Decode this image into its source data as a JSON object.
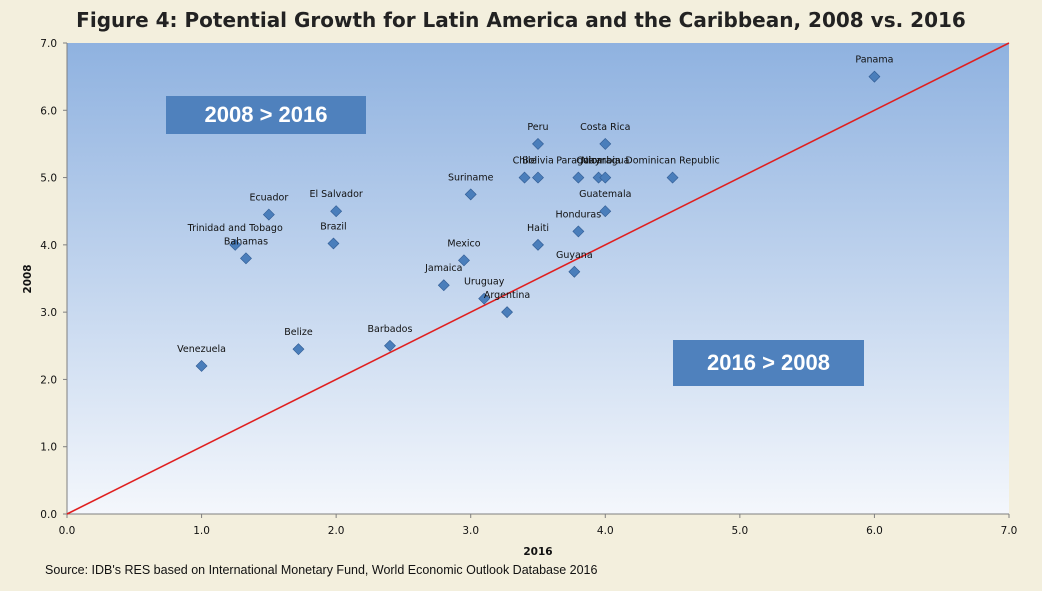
{
  "chart_data": {
    "type": "scatter",
    "title": "Figure 4: Potential Growth for Latin America and the Caribbean, 2008 vs. 2016",
    "xlabel": "2016",
    "ylabel": "2008",
    "xlim": [
      0,
      7
    ],
    "ylim": [
      0,
      7
    ],
    "xticks": [
      "0.0",
      "1.0",
      "2.0",
      "3.0",
      "4.0",
      "5.0",
      "6.0",
      "7.0"
    ],
    "yticks": [
      "0.0",
      "1.0",
      "2.0",
      "3.0",
      "4.0",
      "5.0",
      "6.0",
      "7.0"
    ],
    "reference_line": {
      "label": "45-degree line",
      "from": [
        0,
        0
      ],
      "to": [
        7,
        7
      ],
      "color": "#e02020"
    },
    "annotations": {
      "upper_left": "2008 > 2016",
      "lower_right": "2016 > 2008"
    },
    "points": [
      {
        "name": "Panama",
        "x": 6.0,
        "y": 6.5
      },
      {
        "name": "Peru",
        "x": 3.5,
        "y": 5.5
      },
      {
        "name": "Costa Rica",
        "x": 4.0,
        "y": 5.5
      },
      {
        "name": "Chile",
        "x": 3.4,
        "y": 5.0
      },
      {
        "name": "Bolivia",
        "x": 3.5,
        "y": 5.0
      },
      {
        "name": "Paraguay",
        "x": 3.8,
        "y": 5.0
      },
      {
        "name": "Colombia",
        "x": 3.95,
        "y": 5.0
      },
      {
        "name": "Nicaragua",
        "x": 4.0,
        "y": 5.0
      },
      {
        "name": "Dominican Republic",
        "x": 4.5,
        "y": 5.0
      },
      {
        "name": "Suriname",
        "x": 3.0,
        "y": 4.75
      },
      {
        "name": "Guatemala",
        "x": 4.0,
        "y": 4.5
      },
      {
        "name": "El Salvador",
        "x": 2.0,
        "y": 4.5
      },
      {
        "name": "Ecuador",
        "x": 1.5,
        "y": 4.45
      },
      {
        "name": "Honduras",
        "x": 3.8,
        "y": 4.2
      },
      {
        "name": "Brazil",
        "x": 1.98,
        "y": 4.02
      },
      {
        "name": "Trinidad and Tobago",
        "x": 1.25,
        "y": 4.0
      },
      {
        "name": "Haiti",
        "x": 3.5,
        "y": 4.0
      },
      {
        "name": "Bahamas",
        "x": 1.33,
        "y": 3.8
      },
      {
        "name": "Mexico",
        "x": 2.95,
        "y": 3.77
      },
      {
        "name": "Guyana",
        "x": 3.77,
        "y": 3.6
      },
      {
        "name": "Jamaica",
        "x": 2.8,
        "y": 3.4
      },
      {
        "name": "Uruguay",
        "x": 3.1,
        "y": 3.2
      },
      {
        "name": "Argentina",
        "x": 3.27,
        "y": 3.0
      },
      {
        "name": "Barbados",
        "x": 2.4,
        "y": 2.5
      },
      {
        "name": "Belize",
        "x": 1.72,
        "y": 2.45
      },
      {
        "name": "Venezuela",
        "x": 1.0,
        "y": 2.2
      }
    ]
  },
  "source": "Source: IDB's RES based on International Monetary Fund, World Economic Outlook Database 2016",
  "colors": {
    "marker": "#4a7ebb",
    "line": "#e02020",
    "box": "#4f81bd"
  }
}
